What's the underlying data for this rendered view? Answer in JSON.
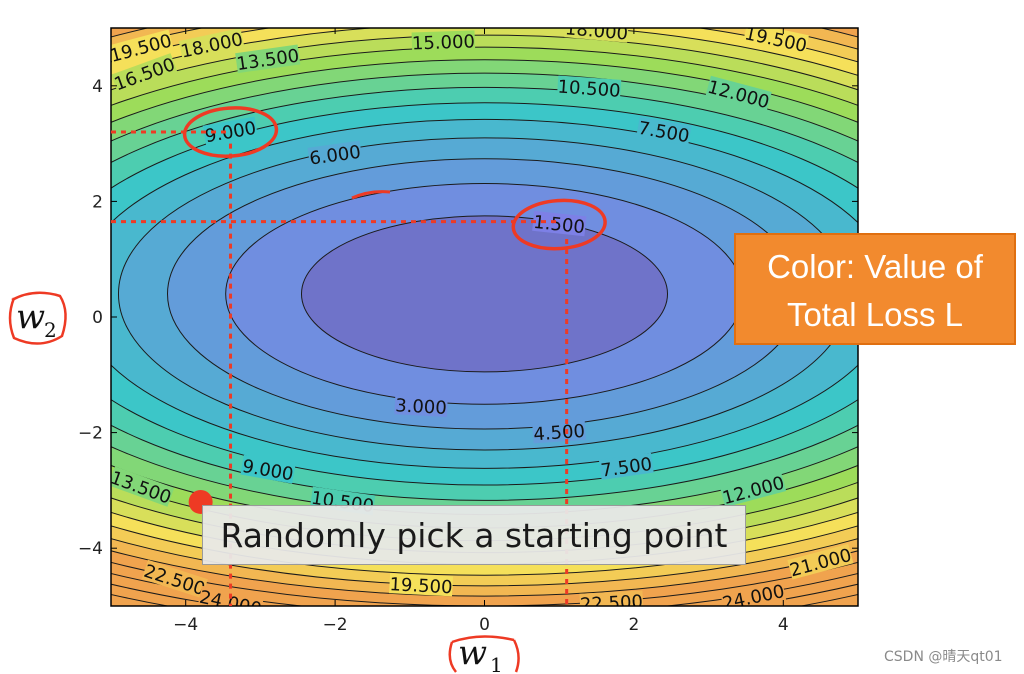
{
  "chart_data": {
    "type": "contour",
    "title": "",
    "xlabel": "w",
    "xlabel_sub": "1",
    "ylabel": "w",
    "ylabel_sub": "2",
    "xlim": [
      -5,
      5
    ],
    "ylim": [
      -5,
      5
    ],
    "x_ticks": [
      -4,
      -2,
      0,
      2,
      4
    ],
    "y_ticks": [
      4,
      2,
      0,
      -2,
      -4
    ],
    "x_tick_labels": [
      "−4",
      "−2",
      "0",
      "2",
      "4"
    ],
    "y_tick_labels": [
      "4",
      "2",
      "0",
      "−2",
      "−4"
    ],
    "minimum": {
      "w1": 0,
      "w2": 0.4
    },
    "contour_levels": [
      1.5,
      3.0,
      4.5,
      6.0,
      7.5,
      9.0,
      10.5,
      12.0,
      13.5,
      15.0,
      16.5,
      18.0,
      19.5,
      21.0,
      22.5,
      24.0
    ],
    "contour_labels": [
      {
        "text": "1.500",
        "w1": 1.0,
        "w2": 1.6,
        "rot": 6
      },
      {
        "text": "3.000",
        "w1": -0.85,
        "w2": -1.55,
        "rot": 3
      },
      {
        "text": "4.500",
        "w1": 1.0,
        "w2": -2.0,
        "rot": -4
      },
      {
        "text": "6.000",
        "w1": -2.0,
        "w2": 2.8,
        "rot": -8
      },
      {
        "text": "7.500",
        "w1": 2.4,
        "w2": 3.2,
        "rot": 10
      },
      {
        "text": "7.500",
        "w1": 1.9,
        "w2": -2.6,
        "rot": -8
      },
      {
        "text": "9.000",
        "w1": -3.4,
        "w2": 3.2,
        "rot": -10
      },
      {
        "text": "9.000",
        "w1": -2.9,
        "w2": -2.65,
        "rot": 10
      },
      {
        "text": "10.500",
        "w1": 1.4,
        "w2": 3.95,
        "rot": 4
      },
      {
        "text": "10.500",
        "w1": -1.9,
        "w2": -3.2,
        "rot": 8
      },
      {
        "text": "12.000",
        "w1": 3.4,
        "w2": 3.85,
        "rot": 15
      },
      {
        "text": "12.000",
        "w1": 3.6,
        "w2": -3.0,
        "rot": -15
      },
      {
        "text": "13.500",
        "w1": -2.9,
        "w2": 4.45,
        "rot": -8
      },
      {
        "text": "13.500",
        "w1": -4.6,
        "w2": -2.95,
        "rot": 20
      },
      {
        "text": "15.000",
        "w1": -0.55,
        "w2": 4.75,
        "rot": -2
      },
      {
        "text": "16.500",
        "w1": -4.55,
        "w2": 4.2,
        "rot": -20
      },
      {
        "text": "18.000",
        "w1": -3.65,
        "w2": 4.7,
        "rot": -12
      },
      {
        "text": "18.000",
        "w1": 1.5,
        "w2": 4.95,
        "rot": 5
      },
      {
        "text": "19.500",
        "w1": -4.6,
        "w2": 4.65,
        "rot": -15
      },
      {
        "text": "19.500",
        "w1": 3.9,
        "w2": 4.8,
        "rot": 12
      },
      {
        "text": "19.500",
        "w1": -0.85,
        "w2": -4.65,
        "rot": 3
      },
      {
        "text": "21.000",
        "w1": 4.5,
        "w2": -4.25,
        "rot": -15
      },
      {
        "text": "22.500",
        "w1": -4.15,
        "w2": -4.55,
        "rot": 18
      },
      {
        "text": "22.500",
        "w1": 1.7,
        "w2": -4.95,
        "rot": -3
      },
      {
        "text": "24.000",
        "w1": -3.4,
        "w2": -4.95,
        "rot": 12
      },
      {
        "text": "24.000",
        "w1": 3.6,
        "w2": -4.85,
        "rot": -12
      }
    ],
    "annotations": {
      "circles": [
        {
          "label": "9.000",
          "w1": -3.4,
          "w2": 3.2
        },
        {
          "label": "1.500",
          "w1": 1.0,
          "w2": 1.6
        }
      ],
      "starting_point": {
        "w1": -3.8,
        "w2": -3.2
      },
      "dashed_guides": [
        {
          "from_w1": -5,
          "to_w1": -3.4,
          "w2": 3.2
        },
        {
          "from_w1": -5,
          "to_w1": 1.0,
          "w2": 1.65
        },
        {
          "w1": -3.4,
          "from_w2": 3.0,
          "to_w2": -5
        },
        {
          "w1": 1.1,
          "from_w2": 1.35,
          "to_w2": -5
        }
      ]
    },
    "colors": {
      "low": "#7d80e6",
      "mid": "#39c9c6",
      "high_green": "#9ddc5a",
      "high_yellow": "#f5e05a",
      "max": "#f0a34e",
      "annotation_red": "#ee3a24"
    },
    "legend": "none",
    "grid": false
  },
  "callout": {
    "line1": "Color: Value of",
    "line2": "Total Loss L"
  },
  "caption": "Randomly pick a starting point",
  "watermark": "CSDN @晴天qt01"
}
